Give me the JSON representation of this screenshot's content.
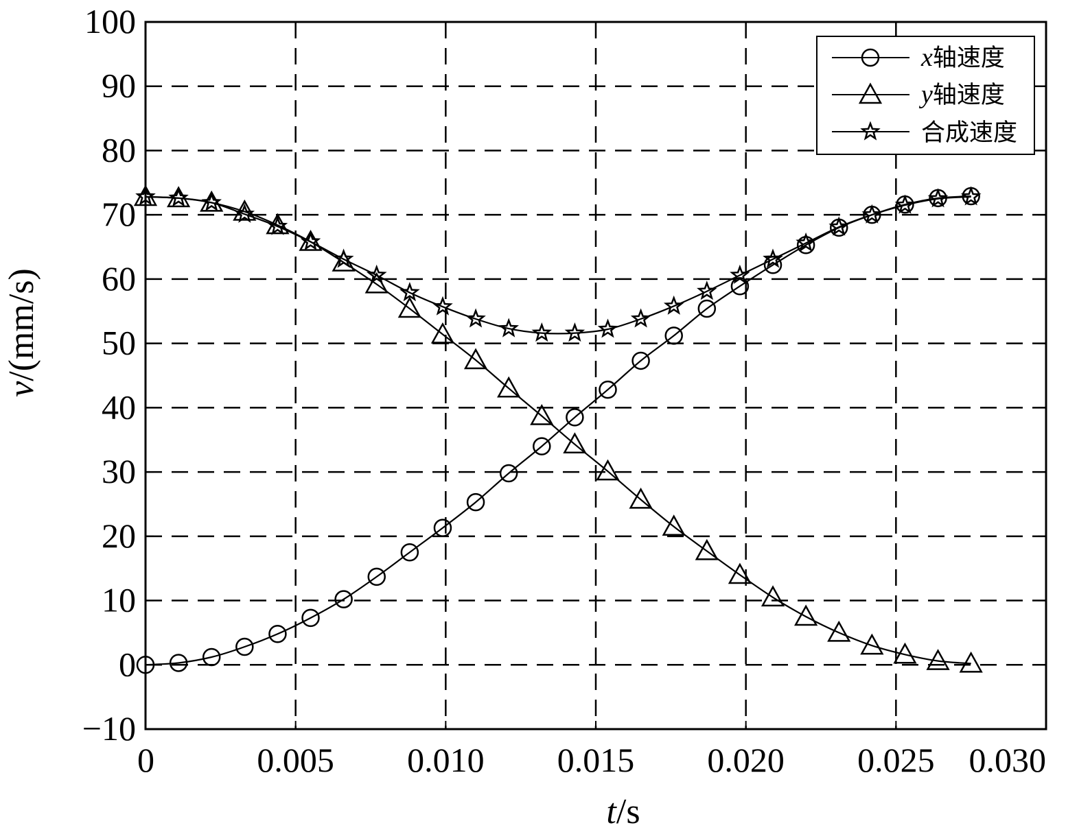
{
  "chart_data": {
    "type": "line",
    "title": "",
    "xlabel": {
      "var": "t",
      "unit": "/s"
    },
    "ylabel": {
      "var": "v",
      "unit": "/(mm/s)"
    },
    "xlim": [
      0,
      0.03
    ],
    "ylim": [
      -10,
      100
    ],
    "xticks": [
      0,
      0.005,
      0.01,
      0.015,
      0.02,
      0.025,
      0.03
    ],
    "xtick_labels": [
      "0",
      "0.005",
      "0.010",
      "0.015",
      "0.020",
      "0.025",
      "0.030"
    ],
    "yticks": [
      -10,
      0,
      10,
      20,
      30,
      40,
      50,
      60,
      70,
      80,
      90,
      100
    ],
    "ytick_labels": [
      "−10",
      "0",
      "10",
      "20",
      "30",
      "40",
      "50",
      "60",
      "70",
      "80",
      "90",
      "100"
    ],
    "grid": "dashed",
    "legend_position": "top-right",
    "x": [
      0,
      0.0011,
      0.0022,
      0.0033,
      0.0044,
      0.0055,
      0.0066,
      0.0077,
      0.0088,
      0.0099,
      0.011,
      0.0121,
      0.0132,
      0.0143,
      0.0154,
      0.0165,
      0.0176,
      0.0187,
      0.0198,
      0.0209,
      0.022,
      0.0231,
      0.0242,
      0.0253,
      0.0264,
      0.0275
    ],
    "series": [
      {
        "name_var": "x",
        "name_text": "轴速度",
        "marker": "circle",
        "values": [
          0.0,
          0.3,
          1.2,
          2.8,
          4.8,
          7.3,
          10.2,
          13.7,
          17.5,
          21.3,
          25.3,
          29.8,
          34.0,
          38.5,
          42.8,
          47.3,
          51.2,
          55.4,
          58.9,
          62.2,
          65.3,
          68.0,
          70.0,
          71.6,
          72.6,
          72.9
        ]
      },
      {
        "name_var": "y",
        "name_text": "轴速度",
        "marker": "triangle",
        "values": [
          72.8,
          72.6,
          71.9,
          70.5,
          68.4,
          65.8,
          62.6,
          59.2,
          55.4,
          51.4,
          47.4,
          43.0,
          38.7,
          34.3,
          30.1,
          25.7,
          21.5,
          17.7,
          14.0,
          10.5,
          7.5,
          5.0,
          3.0,
          1.6,
          0.6,
          0.2
        ]
      },
      {
        "name": "合成速度",
        "marker": "star",
        "values": [
          72.8,
          72.6,
          71.9,
          70.1,
          68.2,
          65.8,
          63.1,
          60.6,
          57.9,
          55.7,
          53.8,
          52.3,
          51.6,
          51.6,
          52.2,
          53.8,
          55.8,
          58.1,
          60.6,
          63.1,
          65.6,
          68.1,
          70.0,
          71.5,
          72.5,
          72.8
        ]
      }
    ]
  }
}
